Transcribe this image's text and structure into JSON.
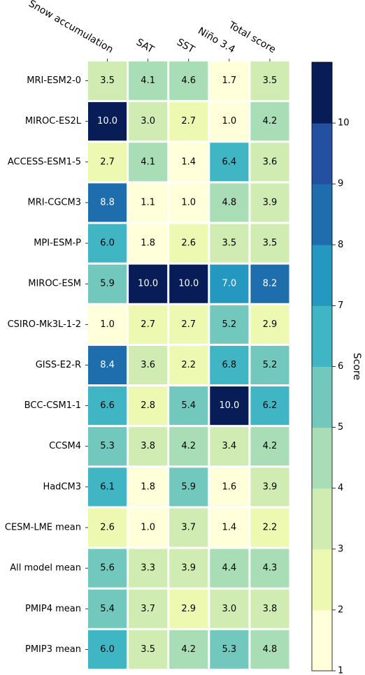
{
  "chart_data": {
    "type": "heatmap",
    "columns": [
      "Snow accumulation",
      "SAT",
      "SST",
      "Niño 3.4",
      "Total score"
    ],
    "rows": [
      "MRI-ESM2-0",
      "MIROC-ES2L",
      "ACCESS-ESM1-5",
      "MRI-CGCM3",
      "MPI-ESM-P",
      "MIROC-ESM",
      "CSIRO-Mk3L-1-2",
      "GISS-E2-R",
      "BCC-CSM1-1",
      "CCSM4",
      "HadCM3",
      "CESM-LME mean",
      "All model mean",
      "PMIP4 mean",
      "PMIP3 mean"
    ],
    "values": [
      [
        "3.5",
        "4.1",
        "4.6",
        "1.7",
        "3.5"
      ],
      [
        "10.0",
        "3.0",
        "2.7",
        "1.0",
        "4.2"
      ],
      [
        "2.7",
        "4.1",
        "1.4",
        "6.4",
        "3.6"
      ],
      [
        "8.8",
        "1.1",
        "1.0",
        "4.8",
        "3.9"
      ],
      [
        "6.0",
        "1.8",
        "2.6",
        "3.5",
        "3.5"
      ],
      [
        "5.9",
        "10.0",
        "10.0",
        "7.0",
        "8.2"
      ],
      [
        "1.0",
        "2.7",
        "2.7",
        "5.2",
        "2.9"
      ],
      [
        "8.4",
        "3.6",
        "2.2",
        "6.8",
        "5.2"
      ],
      [
        "6.6",
        "2.8",
        "5.4",
        "10.0",
        "6.2"
      ],
      [
        "5.3",
        "3.8",
        "4.2",
        "3.4",
        "4.2"
      ],
      [
        "6.1",
        "1.8",
        "5.9",
        "1.6",
        "3.9"
      ],
      [
        "2.6",
        "1.0",
        "3.7",
        "1.4",
        "2.2"
      ],
      [
        "5.6",
        "3.3",
        "3.9",
        "4.4",
        "4.3"
      ],
      [
        "5.4",
        "3.7",
        "2.9",
        "3.0",
        "3.8"
      ],
      [
        "6.0",
        "3.5",
        "4.2",
        "5.3",
        "4.8"
      ]
    ],
    "colorbar": {
      "label": "Score",
      "range": [
        1,
        11
      ],
      "ticks": [
        "1",
        "2",
        "3",
        "4",
        "5",
        "6",
        "7",
        "8",
        "9",
        "10"
      ],
      "colors": [
        "#ffffd9",
        "#edf8b1",
        "#d1ecb3",
        "#a8ddb5",
        "#73c8bd",
        "#40b6c4",
        "#2598c1",
        "#1e6eae",
        "#2350a0",
        "#081d58"
      ],
      "text_light": "#ffffff",
      "text_dark": "#000000"
    }
  }
}
